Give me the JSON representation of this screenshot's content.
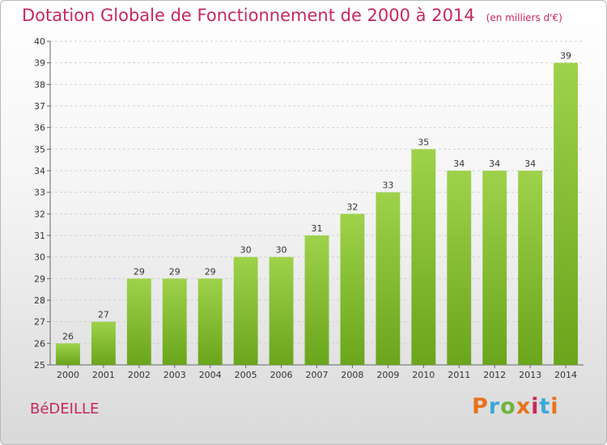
{
  "header": {
    "title": "Dotation Globale de Fonctionnement de 2000 à 2014",
    "unit": "(en milliers d'€)"
  },
  "commune": "BéDEILLE",
  "logo": {
    "letters": [
      "P",
      "r",
      "o",
      "x",
      "i",
      "t",
      "i"
    ],
    "colors": [
      "#e8731c",
      "#3aa8dc",
      "#6cb33f",
      "#e8731c",
      "#c8285a",
      "#3aa8dc",
      "#e8731c"
    ]
  },
  "chart_data": {
    "type": "bar",
    "title": "Dotation Globale de Fonctionnement de 2000 à 2014",
    "categories": [
      "2000",
      "2001",
      "2002",
      "2003",
      "2004",
      "2005",
      "2006",
      "2007",
      "2008",
      "2009",
      "2010",
      "2011",
      "2012",
      "2013",
      "2014"
    ],
    "values": [
      26,
      27,
      29,
      29,
      29,
      30,
      30,
      31,
      32,
      33,
      35,
      34,
      34,
      34,
      39
    ],
    "ylim": [
      25,
      40
    ],
    "yticks": [
      25,
      26,
      27,
      28,
      29,
      30,
      31,
      32,
      33,
      34,
      35,
      36,
      37,
      38,
      39,
      40
    ],
    "grid": true,
    "bar_color_top": "#9ed24a",
    "bar_color_bottom": "#6aa51c"
  }
}
